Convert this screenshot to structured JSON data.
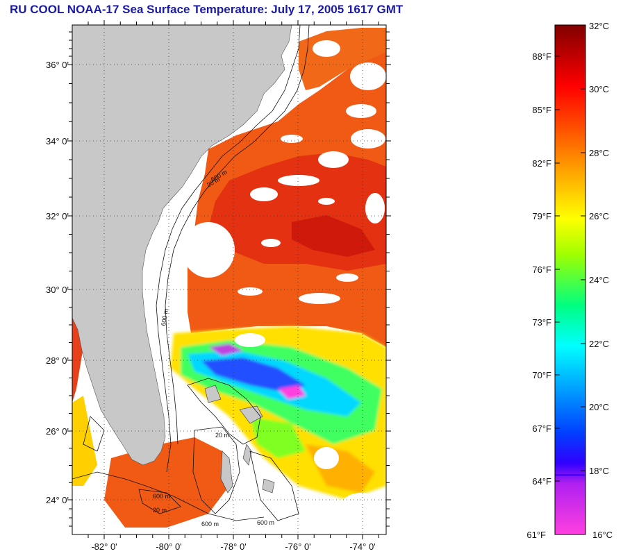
{
  "title": "RU COOL  NOAA-17  Sea Surface Temperature:  July 17, 2005 1617 GMT",
  "map": {
    "lat_range": [
      23,
      37
    ],
    "lon_range": [
      -83,
      -73
    ],
    "lat_labels": [
      "24° 0'",
      "26° 0'",
      "28° 0'",
      "30° 0'",
      "32° 0'",
      "34° 0'",
      "36° 0'"
    ],
    "lon_labels": [
      "-82° 0'",
      "-80° 0'",
      "-78° 0'",
      "-76° 0'",
      "-74° 0'"
    ],
    "contour_labels": [
      "20 m",
      "600 m",
      "600 m",
      "20 m",
      "600 m",
      "20 m",
      "600 m",
      "600 m"
    ],
    "land_color": "#c8c8c8",
    "cloud_color": "#ffffff"
  },
  "colorbar": {
    "celsius_labels": [
      "32°C",
      "30°C",
      "28°C",
      "26°C",
      "24°C",
      "22°C",
      "20°C",
      "18°C",
      "16°C"
    ],
    "fahrenheit_labels": [
      "88°F",
      "85°F",
      "82°F",
      "79°F",
      "76°F",
      "73°F",
      "70°F",
      "67°F",
      "64°F",
      "61°F"
    ],
    "stops": [
      "#ff40e0",
      "#a020f0",
      "#0000ff",
      "#00a0ff",
      "#00ffff",
      "#00ff80",
      "#80ff00",
      "#ffff00",
      "#ffb000",
      "#ff6000",
      "#ff0000",
      "#800000"
    ]
  }
}
